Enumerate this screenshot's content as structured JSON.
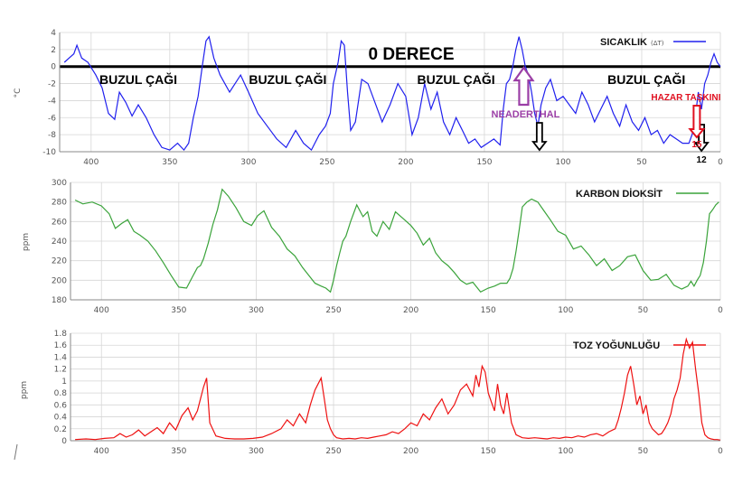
{
  "colors": {
    "temperature": "#2020ee",
    "co2": "#3aa33a",
    "dust": "#ee1111",
    "grid": "#d6d6d6",
    "neanderthal": "#9b3fa6",
    "flood": "#e01020"
  },
  "chart_data": [
    {
      "type": "line",
      "legend": "SICAKLIK",
      "legend_sub": "(ΔT)",
      "ylabel": "°C",
      "xlim": [
        420,
        0
      ],
      "ylim": [
        -10,
        4
      ],
      "y_ticks": [
        4,
        2,
        0,
        -2,
        -4,
        -6,
        -8,
        -10
      ],
      "x_ticks": [
        400,
        350,
        300,
        250,
        200,
        150,
        100,
        50,
        0
      ],
      "zero_line_label": "0 DERECE",
      "ice_age_labels": [
        {
          "text": "BUZUL ÇAĞI",
          "x": 370
        },
        {
          "text": "BUZUL ÇAĞI",
          "x": 275
        },
        {
          "text": "BUZUL ÇAĞI",
          "x": 168
        },
        {
          "text": "BUZUL ÇAĞI",
          "x": 47
        }
      ],
      "annotations": {
        "neanderthal": {
          "text": "NEADERTHAL",
          "x": 125
        },
        "flood": {
          "text": "HAZAR TAŞKINI",
          "value": "15",
          "x": 15
        },
        "marker_12": {
          "text": "12",
          "x": 12
        },
        "marker_115": {
          "x": 115
        }
      },
      "x": [
        417,
        414,
        411,
        409,
        406,
        402,
        397,
        393,
        389,
        385,
        382,
        378,
        374,
        370,
        365,
        360,
        355,
        350,
        345,
        341,
        338,
        335,
        332,
        329,
        327,
        325,
        322,
        318,
        312,
        305,
        300,
        294,
        288,
        282,
        276,
        270,
        265,
        260,
        255,
        251,
        248,
        246,
        243,
        241,
        239,
        237,
        235,
        232,
        228,
        224,
        220,
        215,
        210,
        205,
        200,
        196,
        192,
        188,
        184,
        180,
        176,
        172,
        168,
        164,
        160,
        156,
        152,
        148,
        144,
        140,
        138,
        136,
        134,
        132,
        130,
        128,
        126,
        124,
        122,
        120,
        118,
        116,
        114,
        111,
        108,
        104,
        100,
        96,
        92,
        88,
        84,
        80,
        76,
        72,
        68,
        64,
        60,
        56,
        52,
        48,
        44,
        40,
        36,
        32,
        28,
        24,
        20,
        18,
        16,
        14,
        12,
        10,
        8,
        6,
        4,
        2,
        0
      ],
      "values": [
        0.5,
        1.0,
        1.5,
        2.5,
        1.0,
        0.5,
        -1.0,
        -2.5,
        -5.5,
        -6.2,
        -3.0,
        -4.2,
        -5.8,
        -4.5,
        -6.0,
        -8.0,
        -9.5,
        -9.8,
        -9.0,
        -9.8,
        -9.0,
        -6.0,
        -3.5,
        0.5,
        3.0,
        3.5,
        1.0,
        -1.0,
        -3.0,
        -1.0,
        -3.0,
        -5.5,
        -7.0,
        -8.5,
        -9.5,
        -7.5,
        -9.0,
        -9.8,
        -8.0,
        -7.0,
        -5.5,
        -2.0,
        0.5,
        3.0,
        2.5,
        -3.0,
        -7.5,
        -6.5,
        -1.5,
        -2.0,
        -4.0,
        -6.5,
        -4.5,
        -2.0,
        -3.5,
        -8.0,
        -6.0,
        -2.0,
        -5.0,
        -3.0,
        -6.5,
        -8.0,
        -6.0,
        -7.5,
        -9.0,
        -8.5,
        -9.5,
        -9.0,
        -8.5,
        -9.2,
        -5.0,
        -2.0,
        -1.5,
        0.0,
        2.0,
        3.5,
        2.0,
        0.0,
        -1.0,
        -3.0,
        -5.5,
        -7.0,
        -4.5,
        -2.5,
        -1.5,
        -4.0,
        -3.5,
        -4.5,
        -5.5,
        -3.0,
        -4.5,
        -6.5,
        -5.0,
        -3.5,
        -5.5,
        -7.0,
        -4.5,
        -6.5,
        -7.5,
        -6.0,
        -8.0,
        -7.5,
        -9.0,
        -8.0,
        -8.5,
        -9.0,
        -9.0,
        -8.0,
        -6.0,
        -3.0,
        -5.0,
        -2.0,
        -1.0,
        0.5,
        1.5,
        0.5,
        0.0
      ]
    },
    {
      "type": "line",
      "legend": "KARBON DİOKSİT",
      "ylabel": "ppm",
      "xlim": [
        420,
        0
      ],
      "ylim": [
        180,
        300
      ],
      "y_ticks": [
        300,
        280,
        260,
        240,
        220,
        200,
        180
      ],
      "x_ticks": [
        400,
        350,
        300,
        250,
        200,
        150,
        100,
        50,
        0
      ],
      "x": [
        417,
        412,
        406,
        400,
        395,
        391,
        387,
        383,
        379,
        375,
        370,
        365,
        360,
        355,
        350,
        345,
        341,
        338,
        336,
        334,
        331,
        328,
        325,
        322,
        318,
        313,
        308,
        303,
        299,
        295,
        290,
        285,
        280,
        275,
        270,
        266,
        262,
        258,
        255,
        252,
        250,
        248,
        246,
        244,
        242,
        239,
        235,
        231,
        228,
        225,
        222,
        218,
        214,
        210,
        205,
        200,
        196,
        192,
        188,
        184,
        180,
        176,
        172,
        168,
        164,
        160,
        155,
        150,
        146,
        142,
        138,
        136,
        134,
        132,
        130,
        128,
        125,
        122,
        118,
        114,
        110,
        105,
        100,
        95,
        90,
        85,
        80,
        75,
        70,
        65,
        60,
        55,
        50,
        45,
        40,
        35,
        30,
        25,
        21,
        19,
        17,
        15,
        13,
        11,
        9,
        7,
        5,
        3,
        1
      ],
      "values": [
        282,
        278,
        280,
        276,
        268,
        253,
        258,
        262,
        250,
        246,
        240,
        230,
        218,
        205,
        193,
        192,
        204,
        213,
        215,
        222,
        238,
        257,
        272,
        293,
        286,
        274,
        260,
        256,
        266,
        271,
        254,
        245,
        232,
        225,
        213,
        205,
        197,
        194,
        192,
        188,
        200,
        215,
        228,
        240,
        245,
        260,
        277,
        265,
        270,
        250,
        245,
        260,
        252,
        270,
        263,
        256,
        248,
        236,
        243,
        228,
        220,
        215,
        208,
        200,
        196,
        198,
        188,
        192,
        194,
        197,
        197,
        202,
        212,
        230,
        252,
        275,
        280,
        283,
        280,
        271,
        262,
        250,
        246,
        232,
        235,
        226,
        215,
        222,
        210,
        215,
        224,
        226,
        210,
        200,
        201,
        206,
        195,
        191,
        194,
        199,
        194,
        200,
        205,
        218,
        240,
        268,
        272,
        277,
        280
      ]
    },
    {
      "type": "line",
      "legend": "TOZ YOĞUNLUĞU",
      "ylabel": "ppm",
      "xlim": [
        420,
        0
      ],
      "ylim": [
        0,
        1.8
      ],
      "y_ticks": [
        1.8,
        1.6,
        1.4,
        1.2,
        1,
        0.8,
        0.6,
        0.4,
        0.2,
        0
      ],
      "x_ticks": [
        400,
        350,
        300,
        250,
        200,
        150,
        100,
        50,
        0
      ],
      "x": [
        417,
        410,
        404,
        398,
        392,
        388,
        384,
        380,
        376,
        372,
        368,
        364,
        360,
        356,
        352,
        348,
        344,
        341,
        338,
        336,
        334,
        332,
        330,
        326,
        320,
        314,
        308,
        302,
        296,
        290,
        284,
        280,
        276,
        272,
        268,
        265,
        262,
        260,
        258,
        256,
        254,
        252,
        250,
        248,
        244,
        240,
        236,
        232,
        228,
        224,
        220,
        216,
        212,
        208,
        204,
        200,
        196,
        192,
        188,
        184,
        180,
        176,
        172,
        168,
        164,
        160,
        158,
        156,
        154,
        152,
        150,
        148,
        146,
        144,
        142,
        140,
        138,
        135,
        132,
        128,
        124,
        120,
        116,
        112,
        108,
        104,
        100,
        96,
        92,
        88,
        84,
        80,
        76,
        72,
        68,
        66,
        64,
        62,
        60,
        58,
        56,
        54,
        52,
        50,
        48,
        46,
        44,
        42,
        40,
        38,
        36,
        34,
        32,
        30,
        28,
        26,
        24,
        22,
        20,
        18,
        16,
        14,
        12,
        10,
        8,
        6,
        4,
        2,
        0
      ],
      "values": [
        0.02,
        0.03,
        0.02,
        0.04,
        0.05,
        0.12,
        0.06,
        0.1,
        0.18,
        0.08,
        0.15,
        0.22,
        0.12,
        0.3,
        0.18,
        0.42,
        0.55,
        0.35,
        0.5,
        0.7,
        0.9,
        1.05,
        0.3,
        0.08,
        0.04,
        0.03,
        0.03,
        0.04,
        0.06,
        0.12,
        0.2,
        0.35,
        0.25,
        0.45,
        0.3,
        0.6,
        0.85,
        0.95,
        1.05,
        0.7,
        0.35,
        0.2,
        0.1,
        0.05,
        0.03,
        0.04,
        0.03,
        0.05,
        0.04,
        0.06,
        0.08,
        0.1,
        0.15,
        0.12,
        0.2,
        0.3,
        0.25,
        0.45,
        0.35,
        0.55,
        0.7,
        0.45,
        0.6,
        0.85,
        0.95,
        0.75,
        1.1,
        0.9,
        1.25,
        1.15,
        0.8,
        0.65,
        0.5,
        0.95,
        0.6,
        0.45,
        0.8,
        0.3,
        0.1,
        0.05,
        0.04,
        0.05,
        0.04,
        0.03,
        0.05,
        0.04,
        0.06,
        0.05,
        0.08,
        0.06,
        0.1,
        0.12,
        0.08,
        0.15,
        0.2,
        0.35,
        0.55,
        0.8,
        1.1,
        1.25,
        0.95,
        0.6,
        0.75,
        0.45,
        0.6,
        0.3,
        0.2,
        0.15,
        0.1,
        0.12,
        0.2,
        0.3,
        0.45,
        0.7,
        0.85,
        1.05,
        1.45,
        1.7,
        1.55,
        1.65,
        1.2,
        0.8,
        0.3,
        0.1,
        0.05,
        0.03,
        0.02,
        0.02,
        0.01
      ]
    }
  ]
}
